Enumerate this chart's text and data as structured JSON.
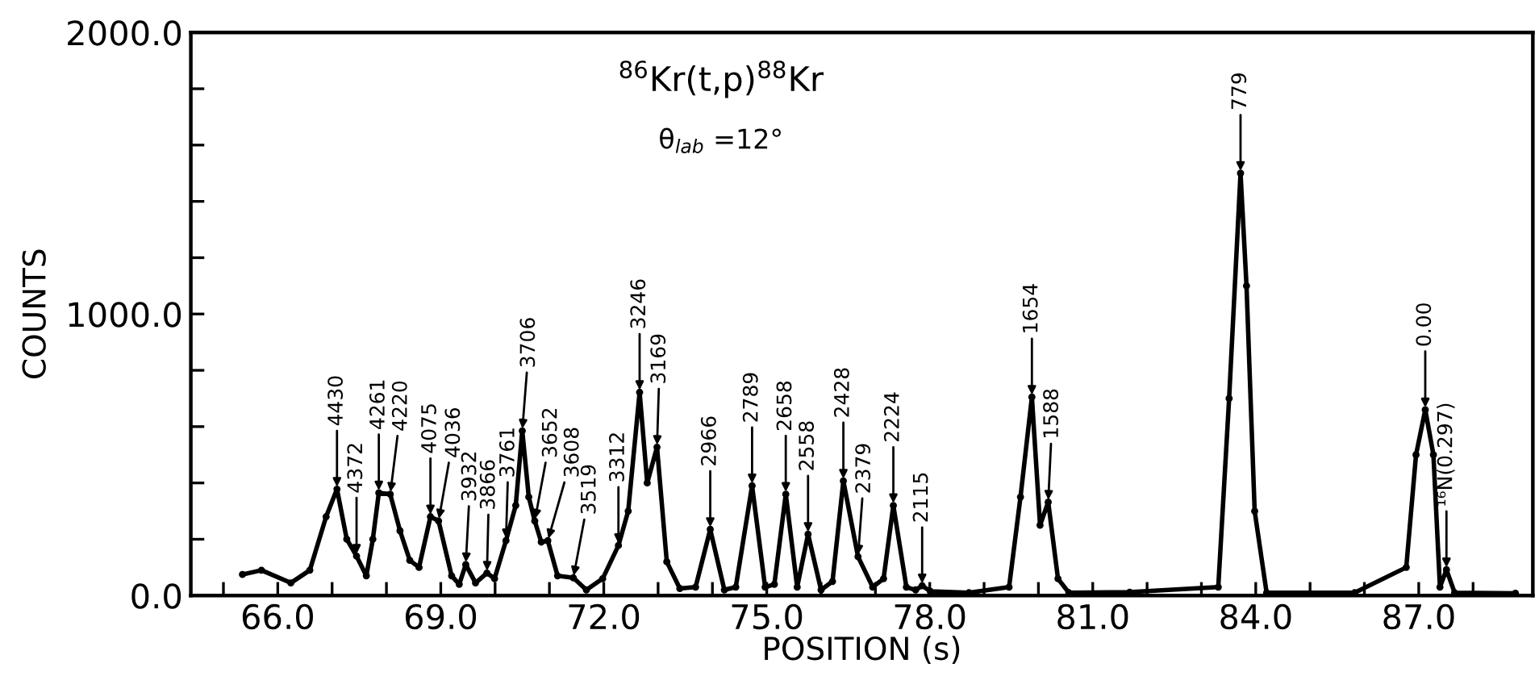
{
  "chart_data": {
    "type": "line",
    "title": "$^{86}$Kr(t,p)$^{88}$Kr",
    "subtitle": "θ$_{lab}$ =12°",
    "xlabel": "POSITION (s)",
    "ylabel": "COUNTS",
    "x": [
      65.35,
      65.7,
      66.24,
      66.59,
      66.89,
      67.09,
      67.27,
      67.45,
      67.63,
      67.75,
      67.86,
      68.07,
      68.25,
      68.43,
      68.6,
      68.81,
      68.96,
      69.2,
      69.34,
      69.46,
      69.64,
      69.85,
      69.99,
      70.2,
      70.38,
      70.5,
      70.62,
      70.73,
      70.85,
      70.97,
      71.15,
      71.44,
      71.68,
      71.98,
      72.27,
      72.45,
      72.66,
      72.8,
      72.98,
      73.16,
      73.4,
      73.69,
      73.96,
      74.22,
      74.43,
      74.73,
      74.97,
      75.14,
      75.35,
      75.56,
      75.76,
      76.0,
      76.21,
      76.41,
      76.68,
      76.95,
      77.15,
      77.33,
      77.57,
      77.74,
      77.86,
      78.01,
      78.72,
      79.46,
      79.67,
      79.88,
      80.03,
      80.18,
      80.36,
      80.56,
      81.68,
      83.31,
      83.51,
      83.72,
      83.83,
      83.98,
      84.2,
      85.82,
      86.77,
      86.95,
      87.12,
      87.27,
      87.39,
      87.51,
      87.66,
      88.78
    ],
    "series": [
      {
        "color": "#000000",
        "values": [
          75,
          90,
          45,
          90,
          280,
          378,
          200,
          140,
          70,
          200,
          365,
          360,
          230,
          125,
          100,
          280,
          265,
          70,
          40,
          110,
          45,
          80,
          60,
          195,
          320,
          585,
          350,
          265,
          190,
          195,
          70,
          63,
          20,
          60,
          178,
          300,
          722,
          400,
          527,
          120,
          25,
          30,
          235,
          20,
          30,
          390,
          30,
          40,
          360,
          30,
          218,
          20,
          50,
          407,
          138,
          30,
          60,
          320,
          30,
          20,
          35,
          15,
          10,
          30,
          350,
          705,
          250,
          332,
          60,
          10,
          12,
          30,
          700,
          1500,
          1100,
          300,
          10,
          10,
          100,
          500,
          660,
          500,
          30,
          92,
          10,
          8
        ]
      }
    ],
    "marker": "circle",
    "line_style": "solid",
    "xlim": [
      64.4,
      89.1
    ],
    "xticks": [
      {
        "value": 65,
        "label": null
      },
      {
        "value": 66,
        "label": "66.0"
      },
      {
        "value": 67,
        "label": null
      },
      {
        "value": 68,
        "label": null
      },
      {
        "value": 69,
        "label": "69.0"
      },
      {
        "value": 70,
        "label": null
      },
      {
        "value": 71,
        "label": null
      },
      {
        "value": 72,
        "label": "72.0"
      },
      {
        "value": 73,
        "label": null
      },
      {
        "value": 74,
        "label": null
      },
      {
        "value": 75,
        "label": "75.0"
      },
      {
        "value": 76,
        "label": null
      },
      {
        "value": 77,
        "label": null
      },
      {
        "value": 78,
        "label": "78.0"
      },
      {
        "value": 79,
        "label": null
      },
      {
        "value": 80,
        "label": null
      },
      {
        "value": 81,
        "label": "81.0"
      },
      {
        "value": 82,
        "label": null
      },
      {
        "value": 83,
        "label": null
      },
      {
        "value": 84,
        "label": "84.0"
      },
      {
        "value": 85,
        "label": null
      },
      {
        "value": 86,
        "label": null
      },
      {
        "value": 87,
        "label": "87.0"
      },
      {
        "value": 88,
        "label": null
      }
    ],
    "ylim": [
      0,
      2000
    ],
    "yticks": [
      {
        "value": 0,
        "label": "0.0"
      },
      {
        "value": 200,
        "label": null
      },
      {
        "value": 400,
        "label": null
      },
      {
        "value": 600,
        "label": null
      },
      {
        "value": 800,
        "label": null
      },
      {
        "value": 1000,
        "label": "1000.0"
      },
      {
        "value": 1200,
        "label": null
      },
      {
        "value": 1400,
        "label": null
      },
      {
        "value": 1600,
        "label": null
      },
      {
        "value": 1800,
        "label": null
      },
      {
        "value": 2000,
        "label": "2000.0"
      }
    ],
    "grid": false,
    "legend": false,
    "annotations": [
      {
        "text": "4430",
        "x": 67.09,
        "y": 378
      },
      {
        "text": "4372",
        "x": 67.45,
        "y": 140
      },
      {
        "text": "4261",
        "x": 67.86,
        "y": 365
      },
      {
        "text": "4220",
        "x": 68.07,
        "y": 360
      },
      {
        "text": "4075",
        "x": 68.81,
        "y": 280
      },
      {
        "text": "4036",
        "x": 68.96,
        "y": 265
      },
      {
        "text": "3932",
        "x": 69.46,
        "y": 110
      },
      {
        "text": "3866",
        "x": 69.85,
        "y": 80
      },
      {
        "text": "3761",
        "x": 70.2,
        "y": 195
      },
      {
        "text": "3706",
        "x": 70.5,
        "y": 585
      },
      {
        "text": "3652",
        "x": 70.73,
        "y": 265
      },
      {
        "text": "3608",
        "x": 70.97,
        "y": 195
      },
      {
        "text": "3519",
        "x": 71.44,
        "y": 63
      },
      {
        "text": "3312",
        "x": 72.27,
        "y": 178
      },
      {
        "text": "3246",
        "x": 72.66,
        "y": 722
      },
      {
        "text": "3169",
        "x": 72.98,
        "y": 527
      },
      {
        "text": "2966",
        "x": 73.96,
        "y": 235
      },
      {
        "text": "2789",
        "x": 74.73,
        "y": 390
      },
      {
        "text": "2658",
        "x": 75.35,
        "y": 360
      },
      {
        "text": "2558",
        "x": 75.76,
        "y": 218
      },
      {
        "text": "2428",
        "x": 76.41,
        "y": 407
      },
      {
        "text": "2379",
        "x": 76.68,
        "y": 138
      },
      {
        "text": "2224",
        "x": 77.33,
        "y": 320
      },
      {
        "text": "2115",
        "x": 77.86,
        "y": 35
      },
      {
        "text": "1654",
        "x": 79.88,
        "y": 705
      },
      {
        "text": "1588",
        "x": 80.18,
        "y": 332
      },
      {
        "text": "779",
        "x": 83.72,
        "y": 1500
      },
      {
        "text": "0.00",
        "x": 87.12,
        "y": 660
      },
      {
        "text": "¹⁶N(0.297)",
        "x": 87.51,
        "y": 92
      }
    ]
  }
}
